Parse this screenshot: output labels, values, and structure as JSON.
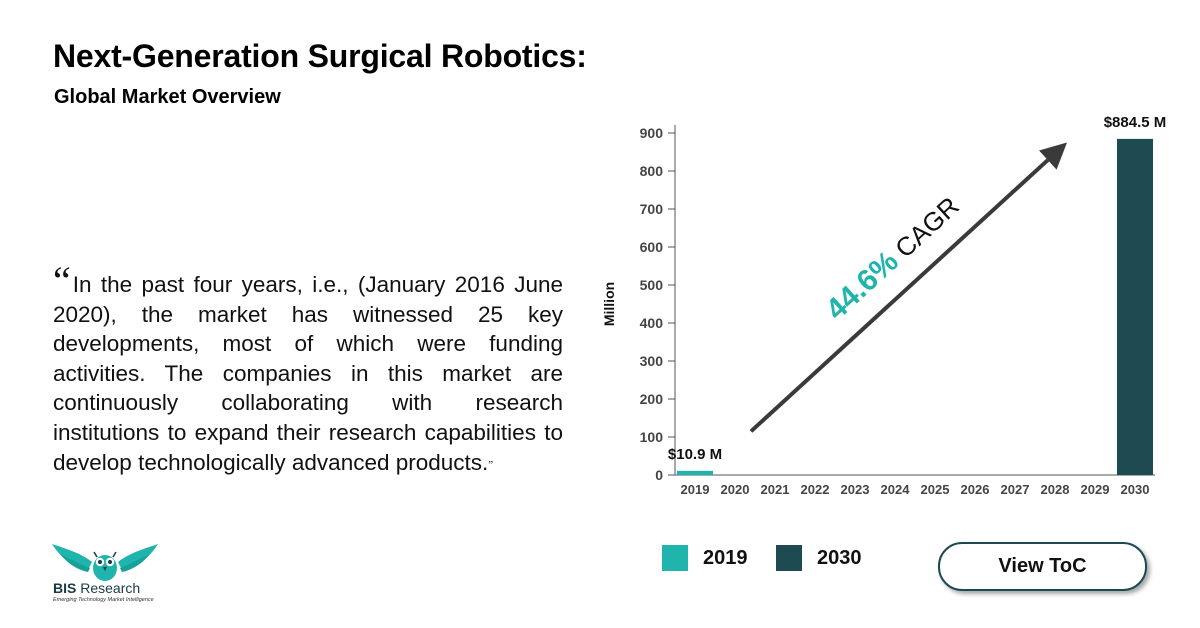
{
  "header": {
    "title": "Next-Generation Surgical Robotics:",
    "subtitle": "Global Market Overview"
  },
  "quote": {
    "open_mark": "“",
    "text": "In the past four years, i.e., (January 2016 June 2020), the market has witnessed 25 key developments, most of which were funding activities. The companies in this market are continuously collaborating with research institutions to expand their research capabilities to develop technologically advanced products.",
    "close_mark": "”"
  },
  "chart_data": {
    "type": "bar",
    "categories": [
      "2019",
      "2020",
      "2021",
      "2022",
      "2023",
      "2024",
      "2025",
      "2026",
      "2027",
      "2028",
      "2029",
      "2030"
    ],
    "series": [
      {
        "name": "2019",
        "values": [
          10.9,
          null,
          null,
          null,
          null,
          null,
          null,
          null,
          null,
          null,
          null,
          null
        ],
        "color": "#1fb5ad"
      },
      {
        "name": "2030",
        "values": [
          null,
          null,
          null,
          null,
          null,
          null,
          null,
          null,
          null,
          null,
          null,
          884.5
        ],
        "color": "#1e4a52"
      }
    ],
    "ylabel": "Million",
    "xlabel": "",
    "ylim": [
      0,
      900
    ],
    "yticks": [
      0,
      100,
      200,
      300,
      400,
      500,
      600,
      700,
      800,
      900
    ],
    "data_labels": [
      "$10.9 M",
      "$884.5 M"
    ],
    "annotation": {
      "value": "44.6%",
      "suffix": " CAGR"
    },
    "grid": false,
    "legend_position": "bottom"
  },
  "legend": [
    {
      "label": "2019",
      "color": "#1fb5ad"
    },
    {
      "label": "2030",
      "color": "#1e4a52"
    }
  ],
  "cta": {
    "label": "View ToC"
  },
  "logo": {
    "name_bold": "BIS",
    "name_rest": " Research",
    "tagline": "Emerging Technology Market Intelligence"
  }
}
